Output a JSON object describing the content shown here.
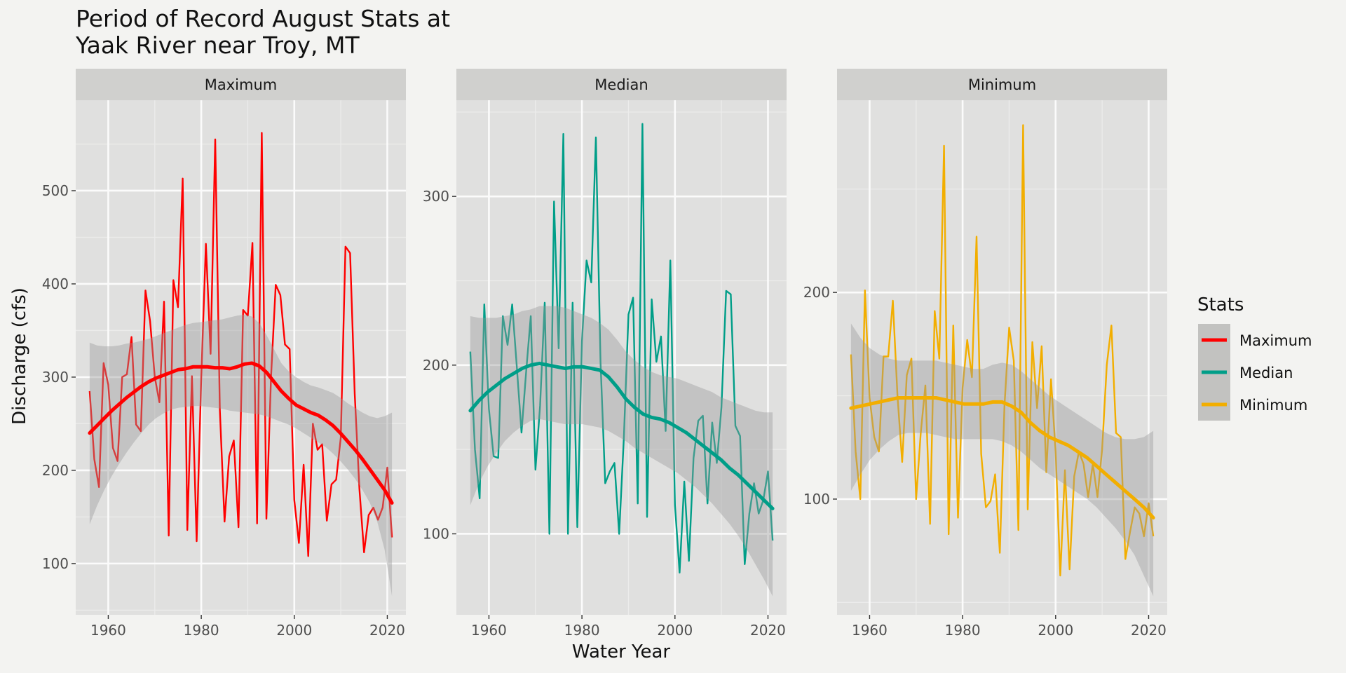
{
  "chart_data": {
    "type": "line",
    "title": "Period of Record August Stats at\nYaak River near Troy, MT",
    "xlabel": "Water Year",
    "ylabel": "Discharge (cfs)",
    "x_ticks": [
      1960,
      1980,
      2000,
      2020
    ],
    "legend": {
      "title": "Stats",
      "position": "right",
      "entries": [
        {
          "name": "Maximum",
          "color": "#ff0000"
        },
        {
          "name": "Median",
          "color": "#009e88"
        },
        {
          "name": "Minimum",
          "color": "#f2ae00"
        }
      ]
    },
    "panels": [
      {
        "name": "Maximum",
        "color": "#ff0000",
        "xlim": [
          1953,
          2024
        ],
        "ylim": [
          45,
          597
        ],
        "y_ticks": [
          100,
          200,
          300,
          400,
          500
        ],
        "x": [
          1956,
          1957,
          1958,
          1959,
          1960,
          1961,
          1962,
          1963,
          1964,
          1965,
          1966,
          1967,
          1968,
          1969,
          1970,
          1971,
          1972,
          1973,
          1974,
          1975,
          1976,
          1977,
          1978,
          1979,
          1980,
          1981,
          1982,
          1983,
          1984,
          1985,
          1986,
          1987,
          1988,
          1989,
          1990,
          1991,
          1992,
          1993,
          1994,
          1995,
          1996,
          1997,
          1998,
          1999,
          2000,
          2001,
          2002,
          2003,
          2004,
          2005,
          2006,
          2007,
          2008,
          2009,
          2010,
          2011,
          2012,
          2013,
          2014,
          2015,
          2016,
          2017,
          2018,
          2019,
          2020,
          2021
        ],
        "values": [
          285,
          212,
          182,
          315,
          292,
          224,
          210,
          300,
          303,
          343,
          249,
          242,
          393,
          360,
          300,
          273,
          381,
          130,
          404,
          375,
          513,
          136,
          301,
          124,
          300,
          443,
          325,
          555,
          265,
          145,
          215,
          232,
          139,
          372,
          366,
          444,
          143,
          562,
          148,
          300,
          399,
          388,
          335,
          330,
          168,
          122,
          206,
          108,
          250,
          222,
          228,
          146,
          185,
          190,
          235,
          440,
          433,
          282,
          180,
          112,
          152,
          160,
          147,
          160,
          203,
          128
        ],
        "smooth": [
          240,
          248,
          256,
          264,
          271,
          278,
          284,
          290,
          295,
          299,
          302,
          305,
          308,
          309,
          311,
          311,
          311,
          310,
          310,
          309,
          311,
          314,
          315,
          312,
          305,
          295,
          285,
          277,
          270,
          266,
          262,
          259,
          254,
          248,
          240,
          231,
          222,
          212,
          201,
          190,
          179,
          165
        ],
        "band_upper": [
          337,
          334,
          333,
          333,
          334,
          336,
          337,
          339,
          341,
          344,
          347,
          350,
          353,
          356,
          358,
          359,
          360,
          361,
          362,
          364,
          366,
          367,
          365,
          358,
          345,
          330,
          315,
          306,
          300,
          295,
          291,
          289,
          286,
          283,
          278,
          272,
          267,
          262,
          258,
          256,
          258,
          262
        ],
        "band_lower": [
          142,
          162,
          179,
          194,
          207,
          219,
          230,
          240,
          249,
          256,
          261,
          265,
          267,
          268,
          269,
          269,
          268,
          267,
          266,
          264,
          263,
          262,
          261,
          260,
          258,
          255,
          252,
          249,
          245,
          240,
          235,
          230,
          225,
          218,
          210,
          201,
          191,
          179,
          165,
          145,
          115,
          65
        ],
        "smooth_x_step": 1.5854
      },
      {
        "name": "Median",
        "color": "#009e88",
        "xlim": [
          1953,
          2024
        ],
        "ylim": [
          52,
          357
        ],
        "y_ticks": [
          100,
          200,
          300
        ],
        "x": [
          1956,
          1957,
          1958,
          1959,
          1960,
          1961,
          1962,
          1963,
          1964,
          1965,
          1966,
          1967,
          1968,
          1969,
          1970,
          1971,
          1972,
          1973,
          1974,
          1975,
          1976,
          1977,
          1978,
          1979,
          1980,
          1981,
          1982,
          1983,
          1984,
          1985,
          1986,
          1987,
          1988,
          1989,
          1990,
          1991,
          1992,
          1993,
          1994,
          1995,
          1996,
          1997,
          1998,
          1999,
          2000,
          2001,
          2002,
          2003,
          2004,
          2005,
          2006,
          2007,
          2008,
          2009,
          2010,
          2011,
          2012,
          2013,
          2014,
          2015,
          2016,
          2017,
          2018,
          2019,
          2020,
          2021
        ],
        "values": [
          208,
          150,
          121,
          236,
          174,
          146,
          145,
          229,
          212,
          236,
          199,
          160,
          196,
          229,
          138,
          176,
          237,
          100,
          297,
          210,
          337,
          100,
          237,
          104,
          214,
          262,
          249,
          335,
          202,
          130,
          137,
          142,
          100,
          156,
          230,
          240,
          118,
          343,
          110,
          239,
          202,
          217,
          161,
          262,
          117,
          77,
          131,
          84,
          145,
          167,
          170,
          118,
          166,
          142,
          175,
          244,
          242,
          164,
          158,
          82,
          112,
          130,
          112,
          120,
          137,
          96
        ],
        "smooth": [
          173,
          179,
          184,
          188,
          192,
          195,
          198,
          200,
          201,
          200,
          199,
          198,
          199,
          199,
          198,
          197,
          193,
          187,
          180,
          175,
          171,
          169,
          168,
          166,
          163,
          160,
          156,
          152,
          148,
          144,
          139,
          135,
          130,
          125,
          120,
          115
        ],
        "smooth_x_step": 1.8571,
        "band_upper": [
          229,
          228,
          228,
          228,
          229,
          230,
          232,
          233,
          235,
          235,
          235,
          234,
          232,
          230,
          228,
          225,
          221,
          215,
          208,
          203,
          199,
          196,
          194,
          193,
          192,
          190,
          188,
          186,
          184,
          181,
          179,
          177,
          175,
          173,
          172,
          172
        ],
        "band_lower": [
          117,
          130,
          140,
          148,
          155,
          160,
          164,
          167,
          168,
          167,
          166,
          165,
          165,
          165,
          164,
          163,
          161,
          158,
          155,
          151,
          148,
          145,
          142,
          139,
          136,
          132,
          128,
          123,
          118,
          112,
          106,
          99,
          91,
          82,
          73,
          63
        ]
      },
      {
        "name": "Minimum",
        "color": "#f2ae00",
        "xlim": [
          1953,
          2024
        ],
        "ylim": [
          44,
          293
        ],
        "y_ticks": [
          100,
          200
        ],
        "x": [
          1956,
          1957,
          1958,
          1959,
          1960,
          1961,
          1962,
          1963,
          1964,
          1965,
          1966,
          1967,
          1968,
          1969,
          1970,
          1971,
          1972,
          1973,
          1974,
          1975,
          1976,
          1977,
          1978,
          1979,
          1980,
          1981,
          1982,
          1983,
          1984,
          1985,
          1986,
          1987,
          1988,
          1989,
          1990,
          1991,
          1992,
          1993,
          1994,
          1995,
          1996,
          1997,
          1998,
          1999,
          2000,
          2001,
          2002,
          2003,
          2004,
          2005,
          2006,
          2007,
          2008,
          2009,
          2010,
          2011,
          2012,
          2013,
          2014,
          2015,
          2016,
          2017,
          2018,
          2019,
          2020,
          2021
        ],
        "values": [
          170,
          123,
          100,
          201,
          149,
          130,
          123,
          169,
          169,
          196,
          150,
          118,
          160,
          168,
          100,
          132,
          155,
          88,
          191,
          168,
          271,
          83,
          184,
          91,
          154,
          177,
          159,
          227,
          122,
          96,
          99,
          112,
          74,
          145,
          183,
          167,
          85,
          281,
          95,
          176,
          144,
          174,
          113,
          158,
          123,
          63,
          114,
          66,
          111,
          123,
          117,
          101,
          117,
          101,
          124,
          165,
          184,
          132,
          130,
          71,
          84,
          96,
          93,
          82,
          98,
          82
        ],
        "smooth": [
          144,
          145,
          146,
          147,
          148,
          149,
          149,
          149,
          149,
          149,
          148,
          147,
          146,
          146,
          146,
          147,
          147,
          145,
          142,
          137,
          133,
          130,
          128,
          126,
          123,
          120,
          116,
          112,
          108,
          104,
          100,
          96,
          91
        ],
        "smooth_x_step": 2.0313,
        "band_upper": [
          185,
          178,
          173,
          170,
          168,
          167,
          167,
          167,
          167,
          167,
          166,
          165,
          164,
          163,
          163,
          165,
          166,
          165,
          162,
          158,
          154,
          150,
          147,
          144,
          141,
          138,
          135,
          132,
          130,
          129,
          129,
          130,
          133
        ],
        "band_lower": [
          104,
          112,
          119,
          124,
          128,
          131,
          132,
          132,
          132,
          131,
          130,
          129,
          129,
          129,
          129,
          129,
          128,
          126,
          123,
          119,
          115,
          112,
          109,
          106,
          103,
          100,
          96,
          91,
          86,
          80,
          73,
          63,
          53
        ]
      }
    ]
  }
}
